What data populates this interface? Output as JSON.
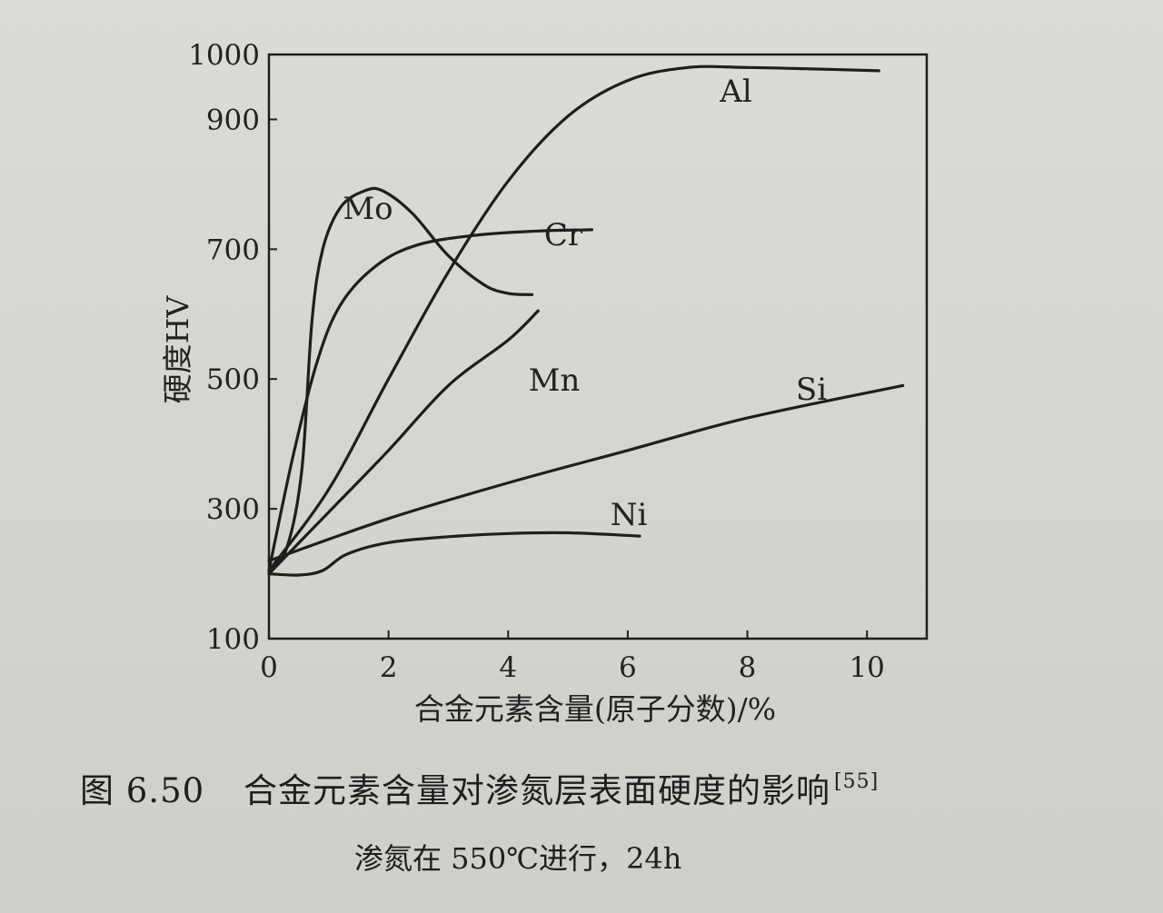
{
  "chart_data": {
    "type": "line",
    "title": "",
    "xlabel": "合金元素含量(原子分数)/%",
    "ylabel": "硬度HV",
    "xlim": [
      0,
      11
    ],
    "ylim": [
      100,
      1000
    ],
    "x_ticks": [
      "0",
      "2",
      "4",
      "6",
      "8",
      "10"
    ],
    "y_ticks": [
      "100",
      "300",
      "500",
      "700",
      "900",
      "1000"
    ],
    "grid": false,
    "series": [
      {
        "name": "Al",
        "x": [
          0,
          1,
          2,
          3,
          4,
          5,
          6,
          7,
          8,
          9,
          10.2
        ],
        "y": [
          205,
          330,
          500,
          665,
          805,
          905,
          960,
          980,
          980,
          978,
          975
        ]
      },
      {
        "name": "Cr",
        "x": [
          0,
          0.4,
          0.8,
          1.2,
          1.8,
          2.5,
          3.5,
          4.5,
          5.4
        ],
        "y": [
          205,
          380,
          525,
          615,
          675,
          707,
          722,
          728,
          730
        ]
      },
      {
        "name": "Mo",
        "x": [
          0,
          0.3,
          0.55,
          0.72,
          0.9,
          1.2,
          1.6,
          1.9,
          2.4,
          3.0,
          3.6,
          4.0,
          4.4
        ],
        "y": [
          205,
          240,
          360,
          590,
          700,
          765,
          790,
          790,
          755,
          690,
          645,
          632,
          630
        ]
      },
      {
        "name": "Mn",
        "x": [
          0,
          1,
          2,
          3,
          4,
          4.5
        ],
        "y": [
          200,
          295,
          390,
          490,
          560,
          605
        ]
      },
      {
        "name": "Si",
        "x": [
          0,
          2,
          4,
          6,
          8,
          10.6
        ],
        "y": [
          220,
          285,
          340,
          390,
          440,
          490
        ]
      },
      {
        "name": "Ni",
        "x": [
          0,
          0.5,
          0.9,
          1.3,
          2,
          3,
          4,
          5,
          6.2
        ],
        "y": [
          200,
          198,
          205,
          230,
          248,
          257,
          262,
          263,
          258
        ]
      }
    ]
  },
  "caption": {
    "figure_number": "图 6.50",
    "title": "合金元素含量对渗氮层表面硬度的影响",
    "reference": "[55]",
    "condition": "渗氮在 550℃进行，24h"
  }
}
